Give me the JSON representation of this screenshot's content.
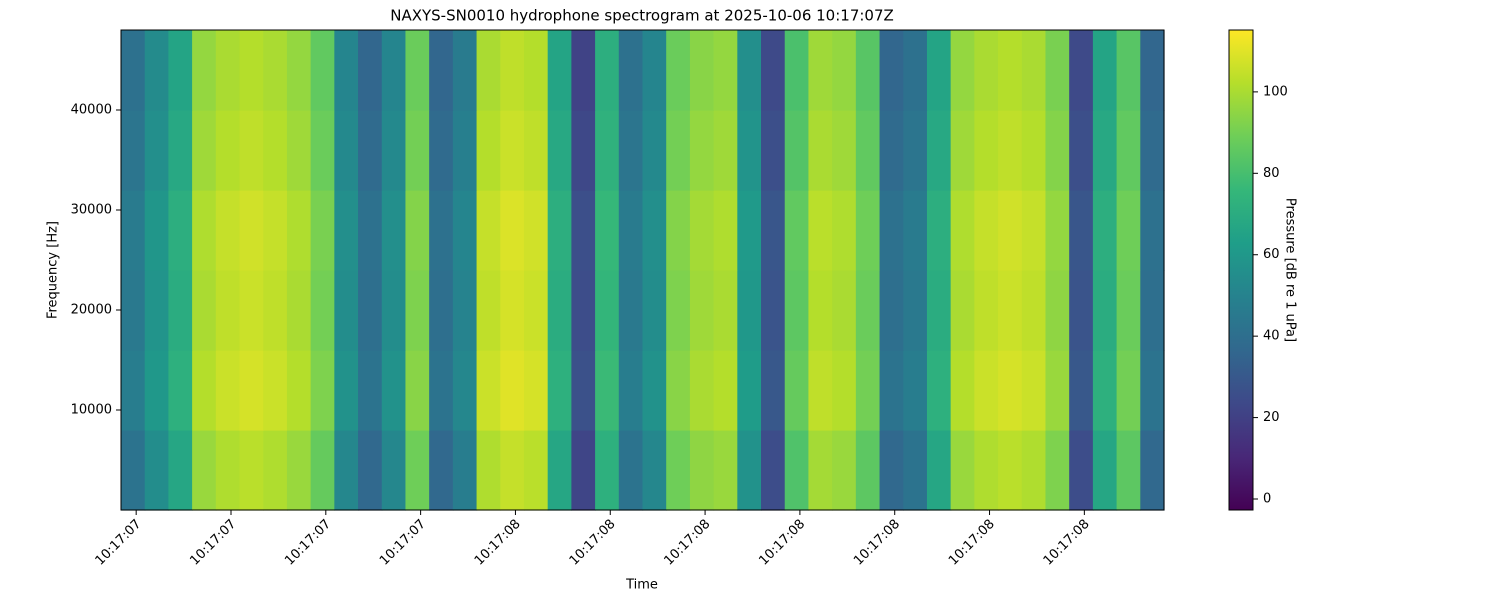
{
  "chart_data": {
    "type": "heatmap",
    "title": "NAXYS-SN0010 hydrophone spectrogram at 2025-10-06 10:17:07Z",
    "xlabel": "Time",
    "ylabel": "Frequency [Hz]",
    "colorbar_label": "Pressure [dB re 1 uPa]",
    "colormap": "viridis",
    "xlim": [
      7.168,
      9.368
    ],
    "ylim": [
      0,
      48000
    ],
    "clim": [
      -2.7,
      115.2
    ],
    "xticks": [
      {
        "value": 7.2,
        "label": "10:17:07"
      },
      {
        "value": 7.4,
        "label": "10:17:07"
      },
      {
        "value": 7.6,
        "label": "10:17:07"
      },
      {
        "value": 7.8,
        "label": "10:17:07"
      },
      {
        "value": 8.0,
        "label": "10:17:08"
      },
      {
        "value": 8.2,
        "label": "10:17:08"
      },
      {
        "value": 8.4,
        "label": "10:17:08"
      },
      {
        "value": 8.6,
        "label": "10:17:08"
      },
      {
        "value": 8.8,
        "label": "10:17:08"
      },
      {
        "value": 9.0,
        "label": "10:17:08"
      },
      {
        "value": 9.2,
        "label": "10:17:08"
      }
    ],
    "yticks": [
      10000,
      20000,
      30000,
      40000
    ],
    "cticks": [
      0,
      20,
      40,
      60,
      80,
      100
    ],
    "x": [
      7.193,
      7.243,
      7.293,
      7.343,
      7.393,
      7.443,
      7.493,
      7.543,
      7.593,
      7.643,
      7.693,
      7.743,
      7.793,
      7.843,
      7.893,
      7.943,
      7.993,
      8.043,
      8.093,
      8.143,
      8.193,
      8.243,
      8.293,
      8.343,
      8.393,
      8.443,
      8.493,
      8.543,
      8.593,
      8.643,
      8.693,
      8.743,
      8.793,
      8.843,
      8.893,
      8.943,
      8.993,
      9.043,
      9.093,
      9.143,
      9.193,
      9.243,
      9.293,
      9.343
    ],
    "y": [
      4000,
      12000,
      20000,
      28000,
      36000,
      44000
    ],
    "z": [
      [
        42,
        55,
        67,
        97,
        101,
        103,
        101,
        97,
        87,
        52,
        37,
        52,
        89,
        37,
        47,
        101,
        105,
        103,
        67,
        22,
        72,
        42,
        52,
        89,
        95,
        97,
        57,
        25,
        82,
        99,
        97,
        85,
        37,
        42,
        67,
        97,
        101,
        103,
        101,
        92,
        25,
        67,
        85,
        37
      ],
      [
        47,
        60,
        72,
        102,
        106,
        108,
        106,
        102,
        92,
        57,
        42,
        57,
        94,
        42,
        52,
        106,
        110,
        108,
        72,
        27,
        77,
        47,
        57,
        94,
        100,
        102,
        62,
        30,
        87,
        104,
        102,
        90,
        42,
        47,
        72,
        102,
        106,
        108,
        106,
        97,
        30,
        72,
        90,
        42
      ],
      [
        45,
        58,
        70,
        100,
        104,
        106,
        104,
        100,
        90,
        55,
        40,
        55,
        92,
        40,
        50,
        104,
        108,
        106,
        70,
        25,
        75,
        45,
        55,
        92,
        98,
        100,
        60,
        28,
        85,
        102,
        100,
        88,
        40,
        45,
        70,
        100,
        104,
        106,
        104,
        95,
        28,
        70,
        88,
        40
      ],
      [
        46,
        59,
        71,
        101,
        105,
        107,
        105,
        101,
        91,
        56,
        41,
        56,
        93,
        41,
        51,
        105,
        109,
        107,
        71,
        26,
        76,
        46,
        56,
        93,
        99,
        101,
        61,
        29,
        86,
        103,
        101,
        89,
        41,
        46,
        71,
        101,
        105,
        107,
        105,
        96,
        29,
        71,
        89,
        41
      ],
      [
        43,
        56,
        68,
        98,
        102,
        104,
        102,
        98,
        88,
        53,
        38,
        53,
        90,
        38,
        48,
        102,
        106,
        104,
        68,
        23,
        73,
        43,
        53,
        90,
        96,
        98,
        58,
        26,
        83,
        100,
        98,
        86,
        38,
        43,
        68,
        98,
        102,
        104,
        102,
        93,
        26,
        68,
        86,
        38
      ],
      [
        41,
        54,
        66,
        96,
        100,
        102,
        100,
        96,
        86,
        51,
        36,
        51,
        88,
        36,
        46,
        100,
        104,
        102,
        66,
        21,
        71,
        41,
        51,
        88,
        94,
        96,
        56,
        24,
        81,
        98,
        96,
        84,
        36,
        41,
        66,
        96,
        100,
        102,
        100,
        91,
        24,
        66,
        84,
        36
      ]
    ]
  }
}
